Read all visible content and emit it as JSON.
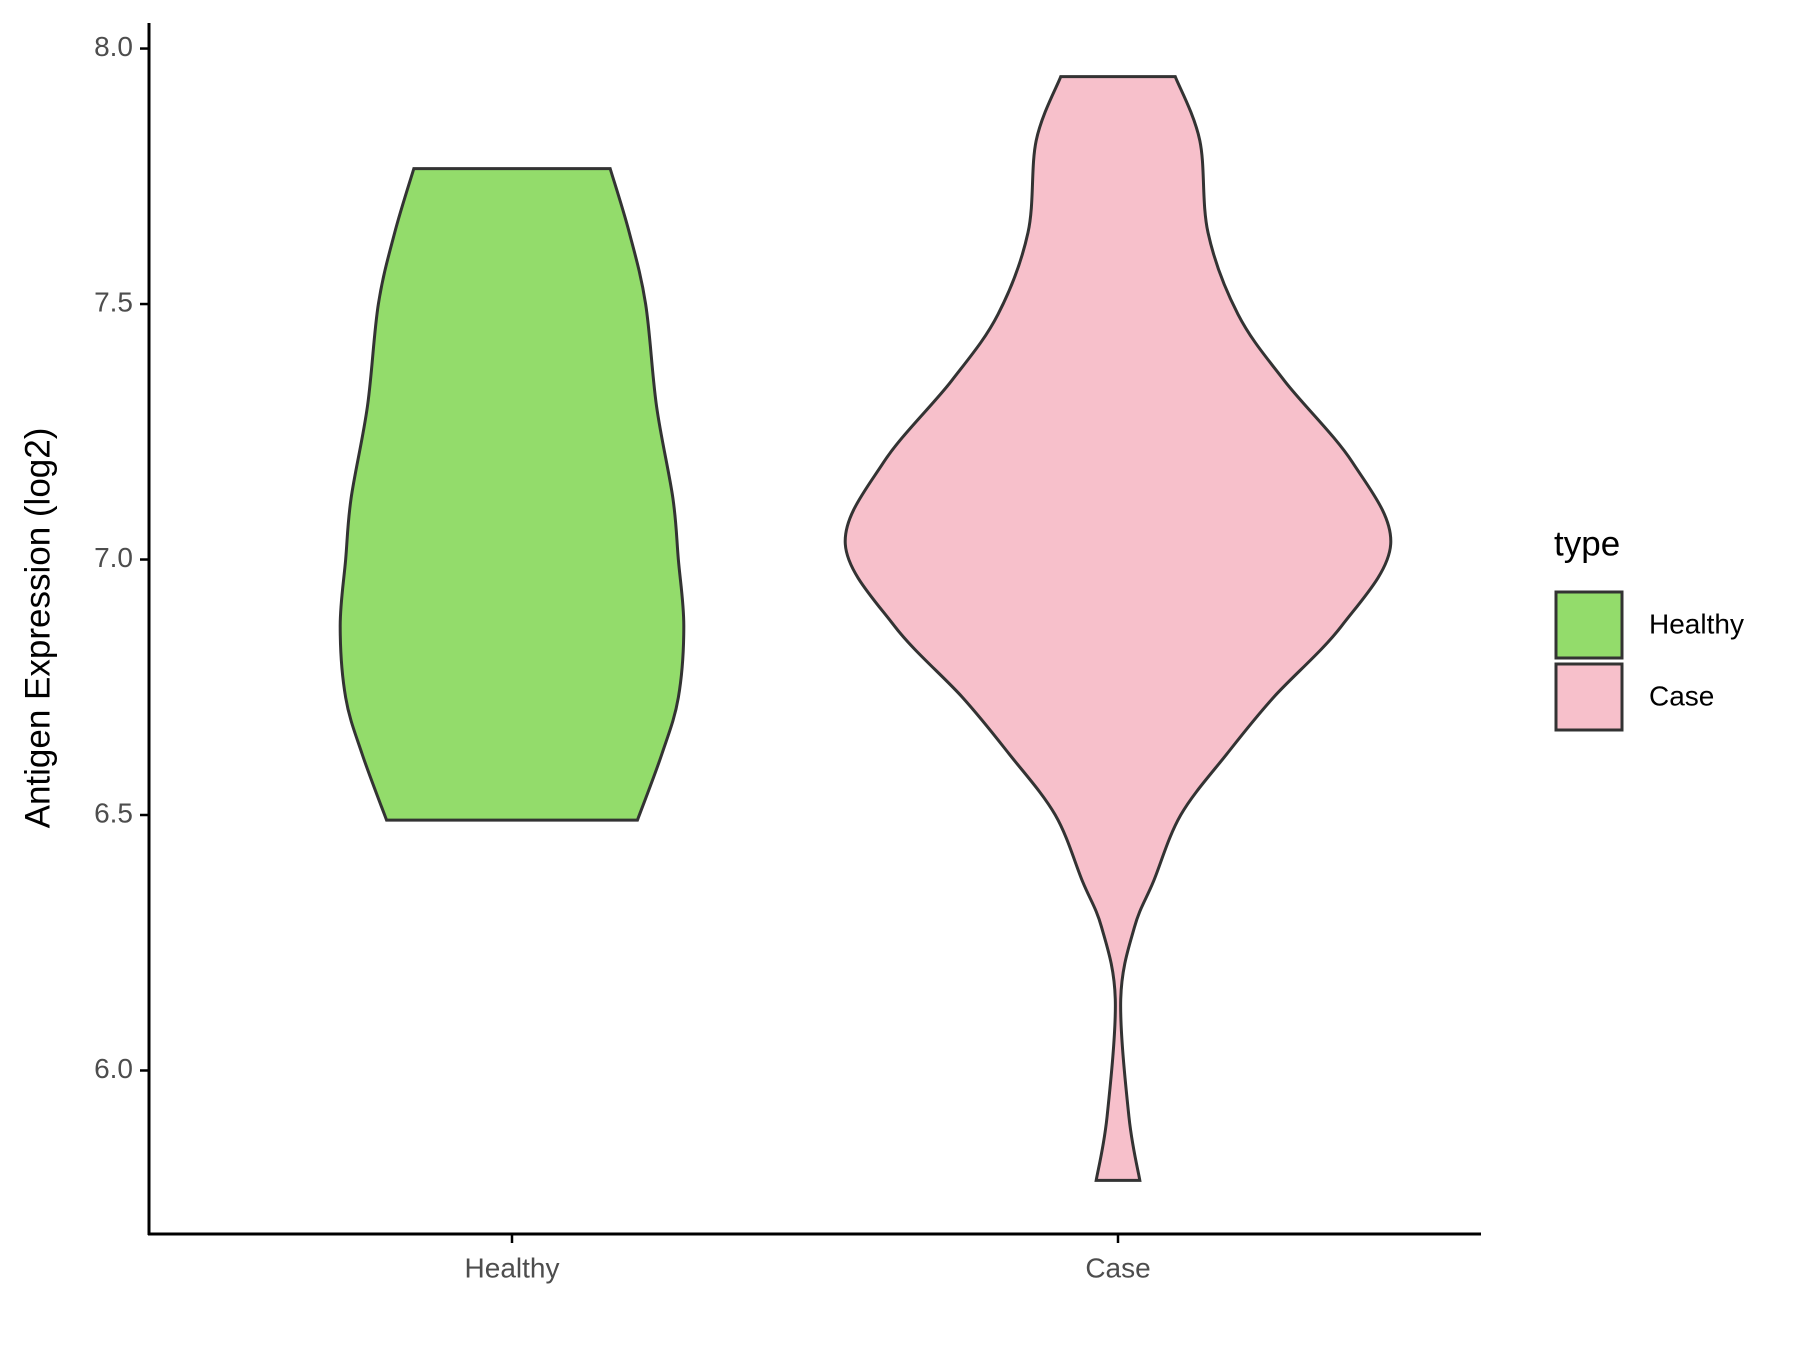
{
  "chart_data": {
    "type": "violin",
    "y_label": "Antigen Expression (log2)",
    "categories": [
      "Healthy",
      "Case"
    ],
    "series": [
      {
        "name": "Healthy",
        "color": "#93dc6b",
        "y": [
          6.49,
          6.62,
          6.73,
          6.87,
          7.0,
          7.12,
          7.3,
          7.5,
          7.64,
          7.765
        ],
        "widths": [
          0.46,
          0.55,
          0.61,
          0.63,
          0.61,
          0.59,
          0.53,
          0.49,
          0.43,
          0.36
        ]
      },
      {
        "name": "Case",
        "color": "#f7c0cb",
        "y": [
          5.785,
          5.91,
          6.14,
          6.28,
          6.37,
          6.5,
          6.62,
          6.73,
          6.87,
          7.03,
          7.19,
          7.35,
          7.48,
          7.64,
          7.82,
          7.945
        ],
        "widths": [
          0.08,
          0.04,
          0.01,
          0.06,
          0.13,
          0.23,
          0.4,
          0.57,
          0.82,
          1.0,
          0.86,
          0.61,
          0.44,
          0.33,
          0.3,
          0.21
        ]
      }
    ],
    "ylim": [
      5.68,
      8.05
    ],
    "yticks": [
      {
        "value": 6,
        "label": "6.0"
      },
      6.5,
      {
        "value": 7,
        "label": "7.0"
      },
      7.5,
      {
        "value": 8,
        "label": "8.0"
      }
    ],
    "legend_title": "type",
    "legend_position": "right"
  }
}
